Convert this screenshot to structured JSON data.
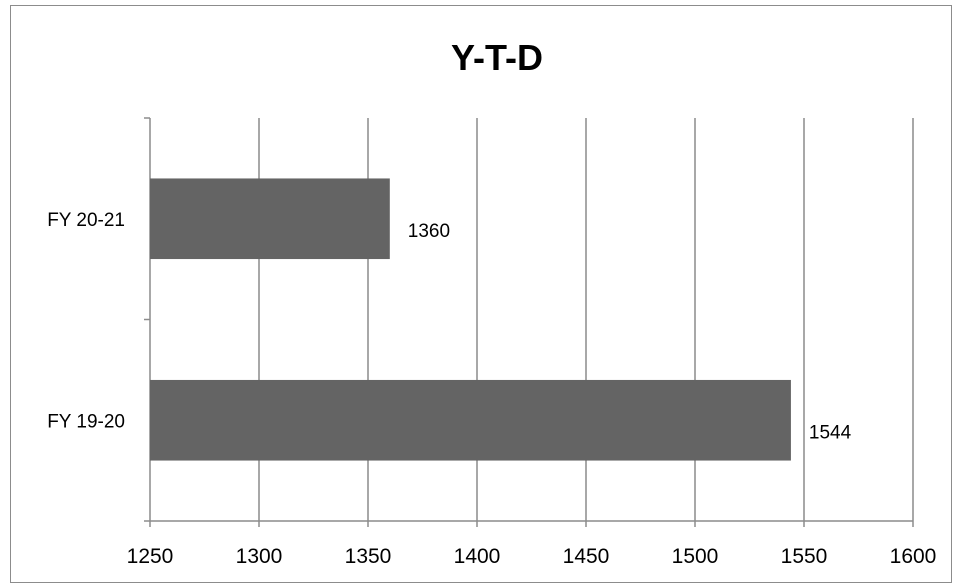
{
  "chart_data": {
    "type": "bar",
    "orientation": "horizontal",
    "title": "Y-T-D",
    "xlabel": "",
    "ylabel": "",
    "categories": [
      "FY 20-21",
      "FY  19-20"
    ],
    "values": [
      1360,
      1544
    ],
    "data_labels": [
      "1360",
      "1544"
    ],
    "xlim": [
      1250,
      1600
    ],
    "xticks": [
      "1250",
      "1300",
      "1350",
      "1400",
      "1450",
      "1500",
      "1550",
      "1600"
    ],
    "grid": "vertical",
    "legend": "none",
    "bar_color": "#646464"
  }
}
